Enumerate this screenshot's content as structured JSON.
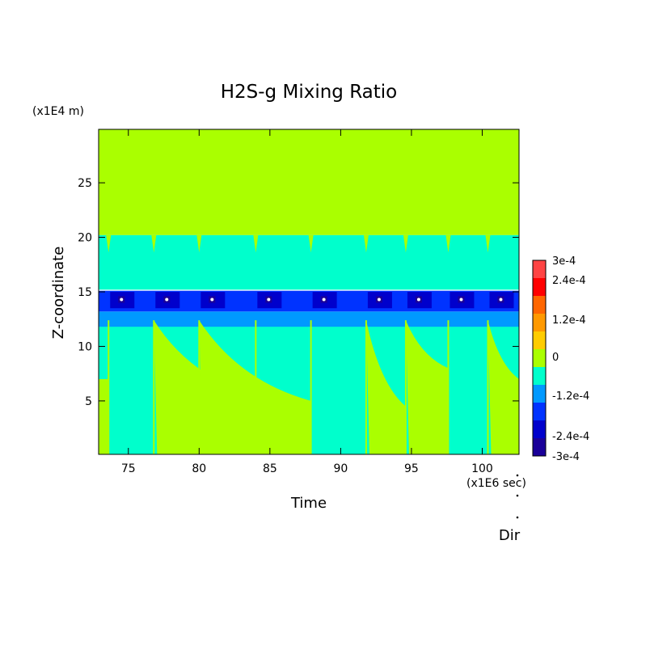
{
  "chart_data": {
    "type": "heatmap",
    "title": "H2S-g Mixing Ratio",
    "xlabel": "Time",
    "ylabel": "Z-coordinate",
    "x_unit": "(x1E6 sec)",
    "y_unit": "(x1E4 m)",
    "xlim": [
      72.9,
      102.6
    ],
    "ylim": [
      0.1,
      29.9
    ],
    "x_ticks": [
      75,
      80,
      85,
      90,
      95,
      100
    ],
    "y_ticks": [
      5,
      10,
      15,
      20,
      25
    ],
    "colorbar": {
      "labels": [
        "3e-4",
        "2.4e-4",
        "1.2e-4",
        "0",
        "-1.2e-4",
        "-2.4e-4",
        "-3e-4"
      ],
      "colors": [
        "#1a0099",
        "#0000cc",
        "#0033ff",
        "#0099ff",
        "#00ffcc",
        "#aaff00",
        "#ffcc00",
        "#ff9900",
        "#ff6600",
        "#ff0000",
        "#ff4444"
      ]
    },
    "regions": {
      "upper_zero_band": {
        "value": 0,
        "z": [
          20.2,
          29.9
        ],
        "color": "#aaff00"
      },
      "middle_band": {
        "value": -6e-05,
        "z": [
          15.2,
          20.2
        ],
        "color": "#00ffcc"
      },
      "min_band": {
        "value": -0.00027,
        "z": [
          13.2,
          15.1
        ],
        "color": "#0033ff"
      },
      "lower_band": {
        "value": -8e-05,
        "z": [
          0.1,
          12.5
        ],
        "color": "#00ffcc"
      }
    },
    "events_x": [
      73.6,
      76.8,
      80.0,
      84.0,
      87.9,
      91.8,
      94.6,
      97.6,
      100.4
    ],
    "zero_wedges": [
      {
        "x0": 76.8,
        "x1": 84.0,
        "z_top": 12.4,
        "z_bottom": 5.5
      },
      {
        "x0": 80.0,
        "x1": 87.9,
        "z_top": 12.4,
        "z_bottom": 5.0
      },
      {
        "x0": 91.8,
        "x1": 94.6,
        "z_top": 12.4,
        "z_bottom": 4.5
      },
      {
        "x0": 94.6,
        "x1": 97.6,
        "z_top": 12.4,
        "z_bottom": 8.0
      },
      {
        "x0": 100.4,
        "x1": 102.6,
        "z_top": 12.4,
        "z_bottom": 7.0
      }
    ],
    "annotation": "Dir"
  }
}
